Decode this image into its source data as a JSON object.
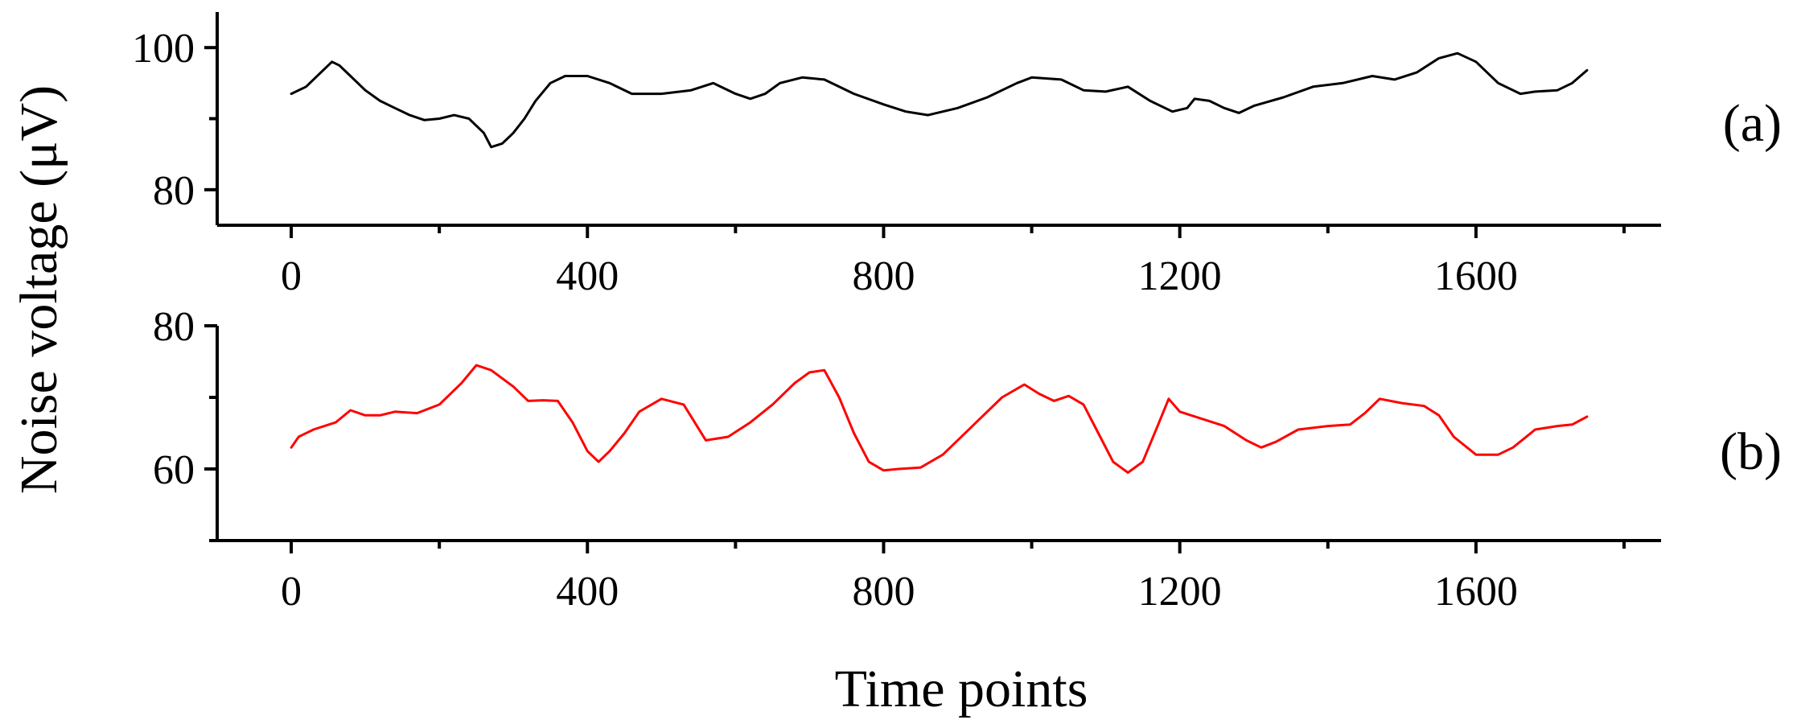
{
  "figure": {
    "ylabel": "Noise voltage (μV)",
    "xlabel": "Time points"
  },
  "chart_data": [
    {
      "type": "line",
      "panel_label": "(a)",
      "xlim": [
        -100,
        1850
      ],
      "ylim": [
        75,
        105
      ],
      "x_ticks": [
        0,
        400,
        800,
        1200,
        1600
      ],
      "x_minor_ticks": [
        200,
        600,
        1000,
        1400,
        1800
      ],
      "y_ticks": [
        80,
        100
      ],
      "y_minor_ticks": [
        90
      ],
      "series": [
        {
          "color": "#000000",
          "points": [
            [
              0,
              93.5
            ],
            [
              20,
              94.5
            ],
            [
              40,
              96.5
            ],
            [
              55,
              98
            ],
            [
              65,
              97.5
            ],
            [
              80,
              96
            ],
            [
              100,
              94
            ],
            [
              120,
              92.5
            ],
            [
              140,
              91.5
            ],
            [
              160,
              90.5
            ],
            [
              180,
              89.8
            ],
            [
              200,
              90
            ],
            [
              220,
              90.5
            ],
            [
              240,
              90
            ],
            [
              260,
              88
            ],
            [
              270,
              86
            ],
            [
              285,
              86.5
            ],
            [
              300,
              88
            ],
            [
              315,
              90
            ],
            [
              330,
              92.5
            ],
            [
              350,
              95
            ],
            [
              370,
              96
            ],
            [
              400,
              96
            ],
            [
              430,
              95
            ],
            [
              460,
              93.5
            ],
            [
              500,
              93.5
            ],
            [
              540,
              94
            ],
            [
              570,
              95
            ],
            [
              600,
              93.5
            ],
            [
              620,
              92.8
            ],
            [
              640,
              93.5
            ],
            [
              660,
              95
            ],
            [
              690,
              95.8
            ],
            [
              720,
              95.5
            ],
            [
              760,
              93.5
            ],
            [
              800,
              92
            ],
            [
              830,
              91
            ],
            [
              860,
              90.5
            ],
            [
              900,
              91.5
            ],
            [
              940,
              93
            ],
            [
              980,
              95
            ],
            [
              1000,
              95.8
            ],
            [
              1040,
              95.5
            ],
            [
              1070,
              94
            ],
            [
              1100,
              93.8
            ],
            [
              1130,
              94.5
            ],
            [
              1160,
              92.5
            ],
            [
              1190,
              91
            ],
            [
              1210,
              91.5
            ],
            [
              1220,
              92.8
            ],
            [
              1240,
              92.5
            ],
            [
              1260,
              91.5
            ],
            [
              1280,
              90.8
            ],
            [
              1300,
              91.8
            ],
            [
              1340,
              93
            ],
            [
              1380,
              94.5
            ],
            [
              1420,
              95
            ],
            [
              1460,
              96
            ],
            [
              1490,
              95.5
            ],
            [
              1520,
              96.5
            ],
            [
              1550,
              98.5
            ],
            [
              1575,
              99.2
            ],
            [
              1600,
              98
            ],
            [
              1630,
              95
            ],
            [
              1660,
              93.5
            ],
            [
              1680,
              93.8
            ],
            [
              1710,
              94
            ],
            [
              1730,
              95
            ],
            [
              1750,
              96.8
            ]
          ]
        }
      ]
    },
    {
      "type": "line",
      "panel_label": "(b)",
      "xlim": [
        -100,
        1850
      ],
      "ylim": [
        50,
        80
      ],
      "x_ticks": [
        0,
        400,
        800,
        1200,
        1600
      ],
      "x_minor_ticks": [
        200,
        600,
        1000,
        1400,
        1800
      ],
      "y_ticks": [
        60,
        80
      ],
      "y_minor_ticks": [
        50,
        70
      ],
      "series": [
        {
          "color": "#ff0000",
          "points": [
            [
              0,
              63
            ],
            [
              10,
              64.5
            ],
            [
              30,
              65.5
            ],
            [
              60,
              66.5
            ],
            [
              80,
              68.2
            ],
            [
              100,
              67.5
            ],
            [
              120,
              67.5
            ],
            [
              140,
              68
            ],
            [
              170,
              67.8
            ],
            [
              200,
              69
            ],
            [
              230,
              72
            ],
            [
              250,
              74.5
            ],
            [
              270,
              73.8
            ],
            [
              300,
              71.5
            ],
            [
              320,
              69.5
            ],
            [
              340,
              69.6
            ],
            [
              360,
              69.5
            ],
            [
              380,
              66.5
            ],
            [
              400,
              62.5
            ],
            [
              415,
              61
            ],
            [
              430,
              62.5
            ],
            [
              450,
              65
            ],
            [
              470,
              68
            ],
            [
              500,
              69.8
            ],
            [
              530,
              69
            ],
            [
              560,
              64
            ],
            [
              590,
              64.5
            ],
            [
              620,
              66.5
            ],
            [
              650,
              69
            ],
            [
              680,
              72
            ],
            [
              700,
              73.5
            ],
            [
              720,
              73.8
            ],
            [
              740,
              70
            ],
            [
              760,
              65
            ],
            [
              780,
              61
            ],
            [
              800,
              59.8
            ],
            [
              820,
              60
            ],
            [
              850,
              60.2
            ],
            [
              880,
              62
            ],
            [
              900,
              64
            ],
            [
              930,
              67
            ],
            [
              960,
              70
            ],
            [
              990,
              71.8
            ],
            [
              1010,
              70.5
            ],
            [
              1030,
              69.5
            ],
            [
              1050,
              70.2
            ],
            [
              1070,
              69
            ],
            [
              1090,
              65
            ],
            [
              1110,
              61
            ],
            [
              1130,
              59.5
            ],
            [
              1150,
              61
            ],
            [
              1170,
              66
            ],
            [
              1185,
              69.8
            ],
            [
              1200,
              68
            ],
            [
              1230,
              67
            ],
            [
              1260,
              66
            ],
            [
              1290,
              64
            ],
            [
              1310,
              63
            ],
            [
              1330,
              63.8
            ],
            [
              1360,
              65.5
            ],
            [
              1400,
              66
            ],
            [
              1430,
              66.2
            ],
            [
              1450,
              67.8
            ],
            [
              1470,
              69.8
            ],
            [
              1500,
              69.2
            ],
            [
              1530,
              68.8
            ],
            [
              1550,
              67.5
            ],
            [
              1570,
              64.5
            ],
            [
              1600,
              62
            ],
            [
              1630,
              62
            ],
            [
              1650,
              63
            ],
            [
              1680,
              65.5
            ],
            [
              1710,
              66
            ],
            [
              1730,
              66.2
            ],
            [
              1750,
              67.3
            ]
          ]
        }
      ]
    }
  ]
}
